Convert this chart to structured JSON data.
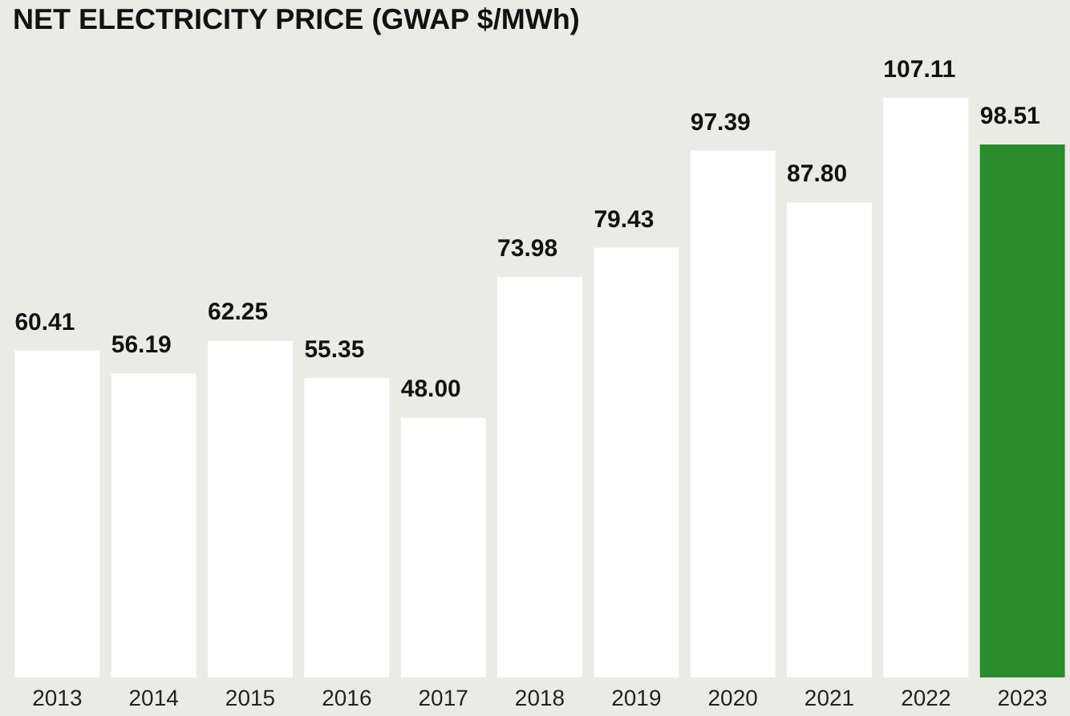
{
  "chart_data": {
    "type": "bar",
    "title": "NET ELECTRICITY PRICE (GWAP $/MWh)",
    "categories": [
      "2013",
      "2014",
      "2015",
      "2016",
      "2017",
      "2018",
      "2019",
      "2020",
      "2021",
      "2022",
      "2023"
    ],
    "values": [
      60.41,
      56.19,
      62.25,
      55.35,
      48.0,
      73.98,
      79.43,
      97.39,
      87.8,
      107.11,
      98.51
    ],
    "value_labels": [
      "60.41",
      "56.19",
      "62.25",
      "55.35",
      "48.00",
      "73.98",
      "79.43",
      "97.39",
      "87.80",
      "107.11",
      "98.51"
    ],
    "colors": [
      "#ffffff",
      "#ffffff",
      "#ffffff",
      "#ffffff",
      "#ffffff",
      "#ffffff",
      "#ffffff",
      "#ffffff",
      "#ffffff",
      "#ffffff",
      "#2a8c2a"
    ]
  }
}
